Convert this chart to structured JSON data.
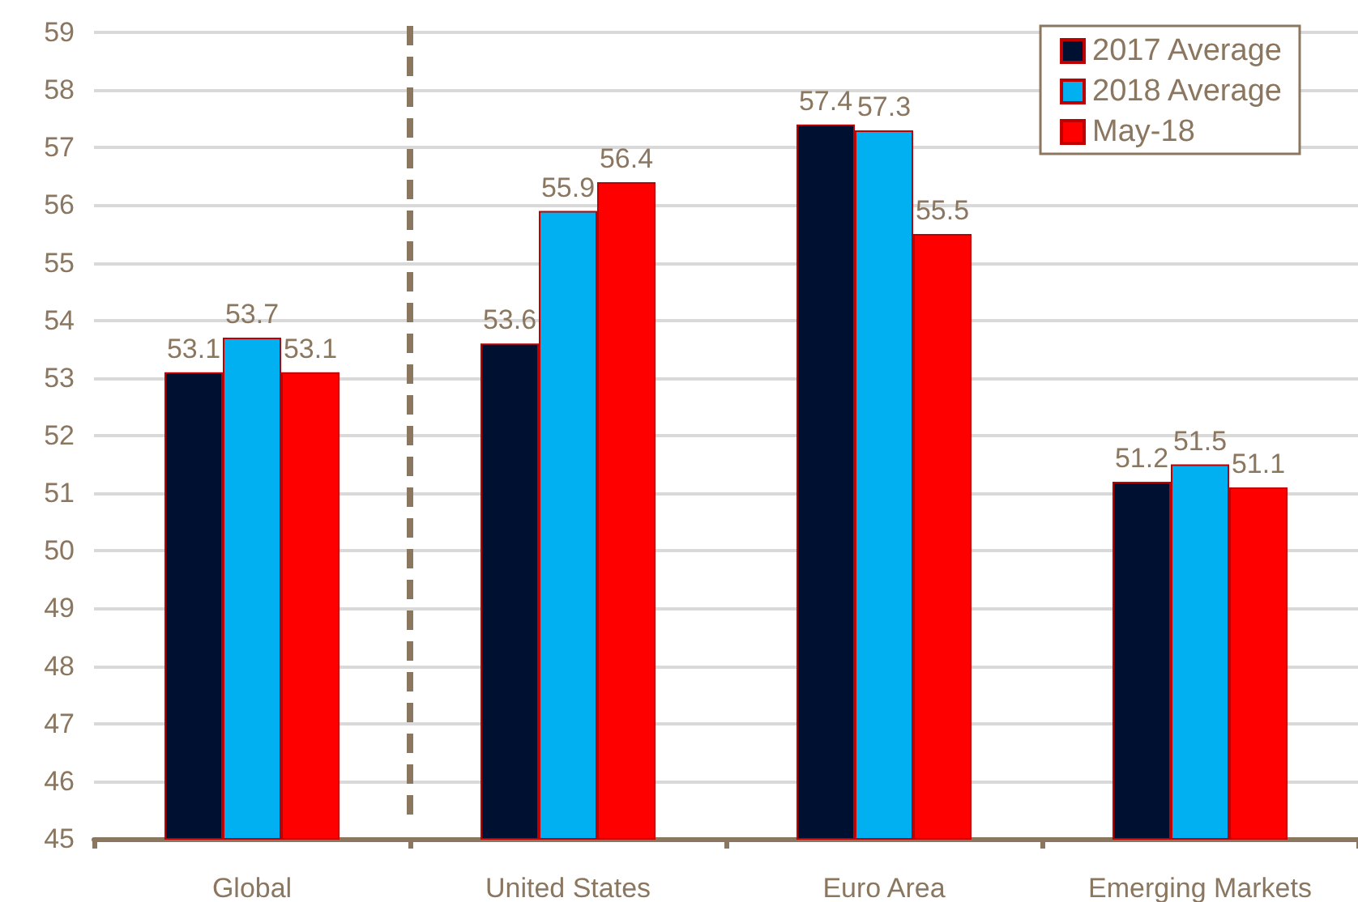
{
  "chart_data": {
    "type": "bar",
    "categories": [
      "Global",
      "United States",
      "Euro Area",
      "Emerging Markets"
    ],
    "series": [
      {
        "name": "2017 Average",
        "color": "#001030",
        "values": [
          53.1,
          53.6,
          57.4,
          51.2
        ]
      },
      {
        "name": "2018 Average",
        "color": "#00b0f0",
        "values": [
          53.7,
          55.9,
          57.3,
          51.5
        ]
      },
      {
        "name": "May-18",
        "color": "#ff0000",
        "values": [
          53.1,
          56.4,
          55.5,
          51.1
        ]
      }
    ],
    "ylim": [
      45,
      59
    ],
    "yticks": [
      45,
      46,
      47,
      48,
      49,
      50,
      51,
      52,
      53,
      54,
      55,
      56,
      57,
      58,
      59
    ],
    "grid": "y",
    "legend": "top right",
    "data_labels": true
  }
}
